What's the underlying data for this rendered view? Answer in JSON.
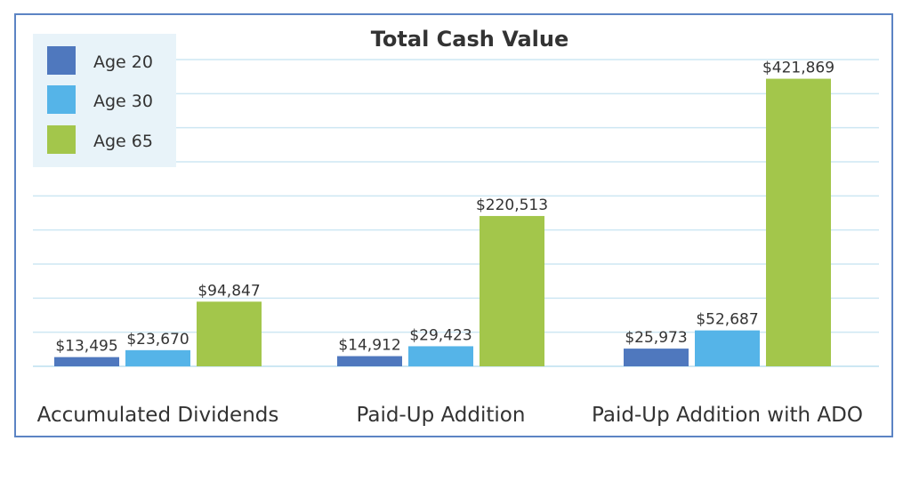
{
  "chart_data": {
    "type": "bar",
    "title": "Total Cash Value",
    "categories": [
      "Accumulated Dividends",
      "Paid-Up Addition",
      "Paid-Up Addition with ADO"
    ],
    "series": [
      {
        "name": "Age 20",
        "color": "#4f78be",
        "values": [
          13495,
          14912,
          25973
        ],
        "labels": [
          "$13,495",
          "$14,912",
          "$25,973"
        ]
      },
      {
        "name": "Age 30",
        "color": "#55b4e8",
        "values": [
          23670,
          29423,
          52687
        ],
        "labels": [
          "$23,670",
          "$29,423",
          "$52,687"
        ]
      },
      {
        "name": "Age 65",
        "color": "#a3c64b",
        "values": [
          94847,
          220513,
          421869
        ],
        "labels": [
          "$94,847",
          "$220,513",
          "$421,869"
        ]
      }
    ],
    "xlabel": "",
    "ylabel": "",
    "ylim": [
      0,
      450000
    ],
    "grid": true,
    "legend": "top-left"
  },
  "colors": {
    "border": "#5c84c4",
    "grid": "#cde7f3",
    "legend_bg": "#e8f3f9"
  }
}
